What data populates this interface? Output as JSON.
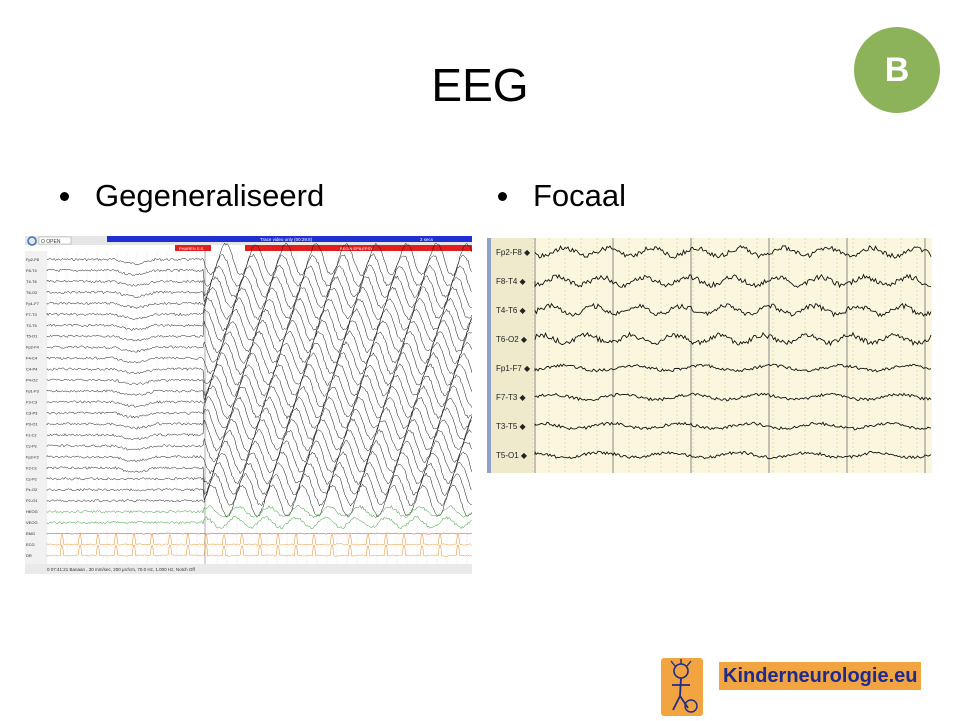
{
  "slide": {
    "title": "EEG",
    "badge": "B",
    "bullets": [
      "Gegeneraliseerd",
      "Focaal"
    ]
  },
  "left_eeg": {
    "header_button": "O OPEN",
    "top_bar_text": "Trace video only (00:29:8)",
    "top_bar_text2": "2 secs",
    "red_bar_label1": "PHAREN S.S.",
    "red_bar_label2": "BEGIN EPILEPSY",
    "channels": [
      "Fp2-F8",
      "F8-T4",
      "T4-T6",
      "T6-O2",
      "Fp1-F7",
      "F7-T3",
      "T3-T5",
      "T5-O1",
      "Fp2-F4",
      "F4-C4",
      "C4-P4",
      "P4-O2",
      "Fp1-F3",
      "F3-C3",
      "C3-P3",
      "P3-O1",
      "Fz-Cz",
      "Cz-Pz",
      "Fp2-F2",
      "F2-Cz",
      "Cz-Pz",
      "Pz-O2",
      "P2-O1",
      "HEOG",
      "VEOG",
      "EMG",
      "ECG",
      "DR"
    ],
    "footer": "0 07:41:21 Banaan , 30 mm/sec, 200 µV/cm, 70.0 Hz, 1.000 Hz, Notch Off"
  },
  "right_eeg": {
    "channels": [
      "Fp2-F8",
      "F8-T4",
      "T4-T6",
      "T6-O2",
      "Fp1-F7",
      "F7-T3",
      "T3-T5",
      "T5-O1"
    ]
  },
  "logo": {
    "text": "Kinderneurologie.eu"
  },
  "colors": {
    "badge": "#8cb35a",
    "logo_bg": "#f2a440",
    "logo_text": "#1e2b8c",
    "eeg_bg_right": "#fbf7df",
    "bar_blue": "#1f2fd4",
    "bar_red": "#e21f1f",
    "trace_green": "#2a9a2a",
    "trace_orange": "#f08a1e"
  }
}
